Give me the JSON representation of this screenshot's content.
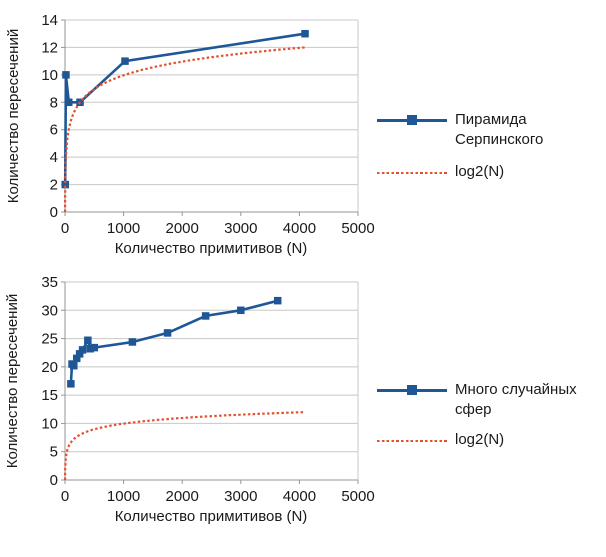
{
  "page": {
    "background": "#ffffff"
  },
  "colors": {
    "series_blue": "#1F5796",
    "series_orange": "#E4512E",
    "gridline": "#C8C8C8",
    "axis": "#969696",
    "text": "#1a1a1a"
  },
  "chart_data": [
    {
      "type": "line",
      "title": "",
      "xlabel": "Количество примитивов (N)",
      "ylabel": "Количество пересечений",
      "xlim": [
        0,
        5000
      ],
      "ylim": [
        0,
        14
      ],
      "xticks": [
        0,
        1000,
        2000,
        3000,
        4000,
        5000
      ],
      "yticks": [
        0,
        2,
        4,
        6,
        8,
        10,
        12,
        14
      ],
      "grid": "horizontal",
      "legend_position": "right",
      "series": [
        {
          "name": "Пирамида Серпинского",
          "color": "#1F5796",
          "line": "solid",
          "marker": "square",
          "points": [
            [
              4,
              2
            ],
            [
              16,
              10
            ],
            [
              64,
              8
            ],
            [
              256,
              8
            ],
            [
              1024,
              11
            ],
            [
              4096,
              13
            ]
          ]
        },
        {
          "name": "log2(N)",
          "color": "#E4512E",
          "line": "dotted",
          "marker": "none",
          "formula": "y = log2(x)",
          "x_range": [
            1,
            4096
          ]
        }
      ]
    },
    {
      "type": "line",
      "title": "",
      "xlabel": "Количество примитивов (N)",
      "ylabel": "Количество пересечений",
      "xlim": [
        0,
        5000
      ],
      "ylim": [
        0,
        35
      ],
      "xticks": [
        0,
        1000,
        2000,
        3000,
        4000,
        5000
      ],
      "yticks": [
        0,
        5,
        10,
        15,
        20,
        25,
        30,
        35
      ],
      "grid": "horizontal",
      "legend_position": "right",
      "series": [
        {
          "name": "Много случайных сфер",
          "color": "#1F5796",
          "line": "solid",
          "marker": "square",
          "points": [
            [
              100,
              17
            ],
            [
              120,
              20.5
            ],
            [
              150,
              20.2
            ],
            [
              200,
              21.5
            ],
            [
              250,
              22.3
            ],
            [
              300,
              23
            ],
            [
              390,
              24.7
            ],
            [
              430,
              23.2
            ],
            [
              500,
              23.4
            ],
            [
              1150,
              24.4
            ],
            [
              1750,
              26
            ],
            [
              2400,
              29
            ],
            [
              3000,
              30
            ],
            [
              3630,
              31.7
            ]
          ]
        },
        {
          "name": "log2(N)",
          "color": "#E4512E",
          "line": "dotted",
          "marker": "none",
          "formula": "y = log2(x)",
          "x_range": [
            1,
            4100
          ]
        }
      ]
    }
  ]
}
